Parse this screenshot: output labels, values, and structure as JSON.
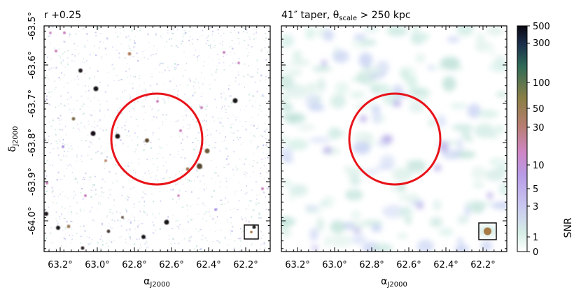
{
  "panels": [
    {
      "title": "r +0.25",
      "xlabel": "αJ2000",
      "ylabel": "δJ2000",
      "xticks": [
        "63.2°",
        "63.0°",
        "62.8°",
        "62.6°",
        "62.4°",
        "62.2°"
      ],
      "yticks": [
        "-63.5°",
        "-63.6°",
        "-63.7°",
        "-63.8°",
        "-63.9°",
        "-64.0°"
      ]
    },
    {
      "title": "41″ taper, θscale > 250 kpc",
      "xlabel": "αJ2000",
      "xticks": [
        "63.2°",
        "63.0°",
        "62.8°",
        "62.6°",
        "62.4°",
        "62.2°"
      ]
    }
  ],
  "colorbar": {
    "label": "SNR",
    "ticks": [
      "500",
      "300",
      "100",
      "50",
      "30",
      "10",
      "5",
      "3",
      "1",
      "0"
    ]
  },
  "colors": {
    "circle": "#e8141a",
    "beam": "#a87a45"
  }
}
